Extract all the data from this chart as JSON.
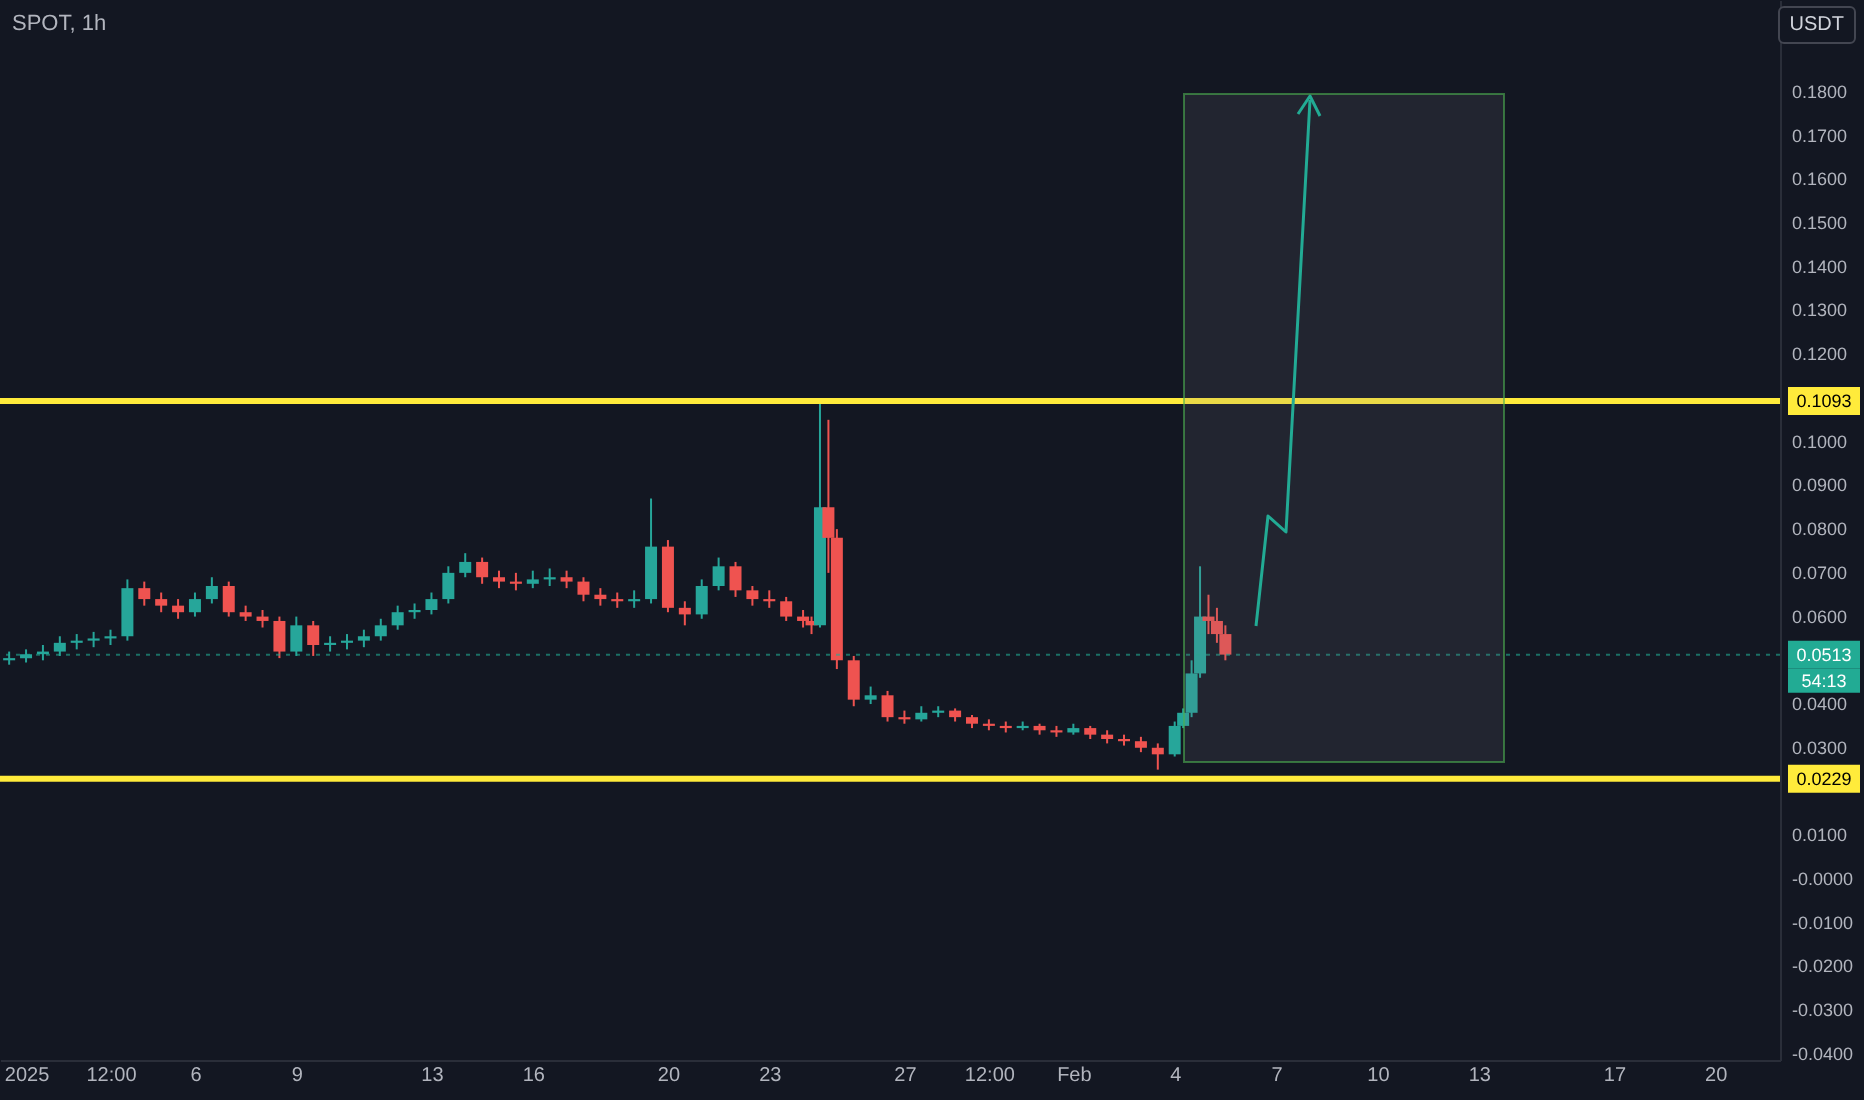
{
  "chart_data": {
    "type": "candlestick",
    "title": "SPOT, 1h",
    "ylabel": "USDT",
    "x": [
      "2024-12-31T12:00",
      "2025-01-01T00:00",
      "2025-01-01T12:00",
      "2025-01-02T00:00",
      "2025-01-02T12:00",
      "2025-01-03T00:00",
      "2025-01-03T12:00",
      "2025-01-04T00:00",
      "2025-01-04T12:00",
      "2025-01-05T00:00",
      "2025-01-05T12:00",
      "2025-01-06T00:00",
      "2025-01-06T12:00",
      "2025-01-07T00:00",
      "2025-01-07T12:00",
      "2025-01-08T00:00",
      "2025-01-08T12:00",
      "2025-01-09T00:00",
      "2025-01-09T12:00",
      "2025-01-10T00:00",
      "2025-01-10T12:00",
      "2025-01-11T00:00",
      "2025-01-11T12:00",
      "2025-01-12T00:00",
      "2025-01-12T12:00",
      "2025-01-13T00:00",
      "2025-01-13T12:00",
      "2025-01-14T00:00",
      "2025-01-14T12:00",
      "2025-01-15T00:00",
      "2025-01-15T12:00",
      "2025-01-16T00:00",
      "2025-01-16T12:00",
      "2025-01-17T00:00",
      "2025-01-17T12:00",
      "2025-01-18T00:00",
      "2025-01-18T12:00",
      "2025-01-19T00:00",
      "2025-01-19T12:00",
      "2025-01-20T00:00",
      "2025-01-20T12:00",
      "2025-01-21T00:00",
      "2025-01-21T12:00",
      "2025-01-22T00:00",
      "2025-01-22T12:00",
      "2025-01-23T00:00",
      "2025-01-23T12:00",
      "2025-01-24T00:00",
      "2025-01-24T06:00",
      "2025-01-24T12:00",
      "2025-01-24T18:00",
      "2025-01-25T00:00",
      "2025-01-25T12:00",
      "2025-01-26T00:00",
      "2025-01-26T12:00",
      "2025-01-27T00:00",
      "2025-01-27T12:00",
      "2025-01-28T00:00",
      "2025-01-28T12:00",
      "2025-01-29T00:00",
      "2025-01-29T12:00",
      "2025-01-30T00:00",
      "2025-01-30T12:00",
      "2025-01-31T00:00",
      "2025-01-31T12:00",
      "2025-02-01T00:00",
      "2025-02-01T12:00",
      "2025-02-02T00:00",
      "2025-02-02T12:00",
      "2025-02-03T00:00",
      "2025-02-03T12:00",
      "2025-02-04T00:00",
      "2025-02-04T06:00",
      "2025-02-04T12:00",
      "2025-02-04T18:00",
      "2025-02-05T00:00",
      "2025-02-05T06:00",
      "2025-02-05T12:00"
    ],
    "ohlc": [
      [
        0.05,
        0.052,
        0.049,
        0.0505
      ],
      [
        0.0505,
        0.0525,
        0.0495,
        0.0514
      ],
      [
        0.0514,
        0.0535,
        0.05,
        0.052
      ],
      [
        0.052,
        0.0555,
        0.051,
        0.054
      ],
      [
        0.054,
        0.056,
        0.0525,
        0.0545
      ],
      [
        0.0545,
        0.0565,
        0.053,
        0.055
      ],
      [
        0.055,
        0.057,
        0.0535,
        0.0555
      ],
      [
        0.0555,
        0.0685,
        0.0545,
        0.0665
      ],
      [
        0.0665,
        0.068,
        0.0625,
        0.064
      ],
      [
        0.064,
        0.0655,
        0.061,
        0.0625
      ],
      [
        0.0625,
        0.064,
        0.0595,
        0.061
      ],
      [
        0.061,
        0.0655,
        0.06,
        0.064
      ],
      [
        0.064,
        0.069,
        0.063,
        0.067
      ],
      [
        0.067,
        0.068,
        0.06,
        0.061
      ],
      [
        0.061,
        0.0625,
        0.059,
        0.06
      ],
      [
        0.06,
        0.0615,
        0.0575,
        0.059
      ],
      [
        0.059,
        0.06,
        0.0505,
        0.052
      ],
      [
        0.052,
        0.06,
        0.051,
        0.058
      ],
      [
        0.058,
        0.059,
        0.051,
        0.0535
      ],
      [
        0.0535,
        0.0555,
        0.052,
        0.054
      ],
      [
        0.054,
        0.056,
        0.0525,
        0.0545
      ],
      [
        0.0545,
        0.057,
        0.053,
        0.0555
      ],
      [
        0.0555,
        0.0595,
        0.0545,
        0.058
      ],
      [
        0.058,
        0.0625,
        0.057,
        0.061
      ],
      [
        0.061,
        0.063,
        0.0595,
        0.0615
      ],
      [
        0.0615,
        0.0655,
        0.0605,
        0.064
      ],
      [
        0.064,
        0.0715,
        0.063,
        0.07
      ],
      [
        0.07,
        0.0745,
        0.069,
        0.0725
      ],
      [
        0.0725,
        0.0735,
        0.0675,
        0.069
      ],
      [
        0.069,
        0.0705,
        0.0665,
        0.068
      ],
      [
        0.068,
        0.07,
        0.066,
        0.0675
      ],
      [
        0.0675,
        0.0705,
        0.0665,
        0.0685
      ],
      [
        0.0685,
        0.071,
        0.067,
        0.069
      ],
      [
        0.069,
        0.0705,
        0.0665,
        0.068
      ],
      [
        0.068,
        0.069,
        0.0635,
        0.065
      ],
      [
        0.065,
        0.0665,
        0.0625,
        0.064
      ],
      [
        0.064,
        0.0655,
        0.062,
        0.0635
      ],
      [
        0.0635,
        0.066,
        0.062,
        0.064
      ],
      [
        0.064,
        0.087,
        0.063,
        0.076
      ],
      [
        0.076,
        0.0775,
        0.061,
        0.062
      ],
      [
        0.062,
        0.0635,
        0.058,
        0.0605
      ],
      [
        0.0605,
        0.0685,
        0.0595,
        0.067
      ],
      [
        0.067,
        0.0735,
        0.066,
        0.0715
      ],
      [
        0.0715,
        0.0725,
        0.0645,
        0.066
      ],
      [
        0.066,
        0.067,
        0.0625,
        0.064
      ],
      [
        0.064,
        0.066,
        0.062,
        0.0635
      ],
      [
        0.0635,
        0.0645,
        0.059,
        0.06
      ],
      [
        0.06,
        0.0615,
        0.0575,
        0.059
      ],
      [
        0.059,
        0.06,
        0.056,
        0.058
      ],
      [
        0.058,
        0.109,
        0.0575,
        0.085
      ],
      [
        0.085,
        0.105,
        0.07,
        0.078
      ],
      [
        0.078,
        0.08,
        0.048,
        0.05
      ],
      [
        0.05,
        0.051,
        0.0395,
        0.041
      ],
      [
        0.041,
        0.044,
        0.04,
        0.042
      ],
      [
        0.042,
        0.043,
        0.036,
        0.037
      ],
      [
        0.037,
        0.0385,
        0.0355,
        0.0365
      ],
      [
        0.0365,
        0.0395,
        0.036,
        0.038
      ],
      [
        0.038,
        0.0395,
        0.037,
        0.0385
      ],
      [
        0.0385,
        0.039,
        0.036,
        0.037
      ],
      [
        0.037,
        0.0375,
        0.0345,
        0.0355
      ],
      [
        0.0355,
        0.0365,
        0.034,
        0.035
      ],
      [
        0.035,
        0.036,
        0.0335,
        0.0345
      ],
      [
        0.0345,
        0.036,
        0.034,
        0.035
      ],
      [
        0.035,
        0.0355,
        0.033,
        0.034
      ],
      [
        0.034,
        0.035,
        0.0325,
        0.0335
      ],
      [
        0.0335,
        0.0355,
        0.033,
        0.0345
      ],
      [
        0.0345,
        0.035,
        0.032,
        0.033
      ],
      [
        0.033,
        0.034,
        0.031,
        0.032
      ],
      [
        0.032,
        0.033,
        0.0305,
        0.0315
      ],
      [
        0.0315,
        0.0325,
        0.029,
        0.03
      ],
      [
        0.03,
        0.031,
        0.025,
        0.0285
      ],
      [
        0.0285,
        0.036,
        0.028,
        0.035
      ],
      [
        0.035,
        0.039,
        0.0345,
        0.038
      ],
      [
        0.038,
        0.05,
        0.037,
        0.047
      ],
      [
        0.047,
        0.0715,
        0.046,
        0.06
      ],
      [
        0.06,
        0.065,
        0.056,
        0.059
      ],
      [
        0.059,
        0.062,
        0.054,
        0.056
      ],
      [
        0.056,
        0.058,
        0.05,
        0.0513
      ]
    ],
    "colors": [
      "#26a69a",
      "#26a69a",
      "#26a69a",
      "#26a69a",
      "#26a69a",
      "#26a69a",
      "#26a69a",
      "#26a69a",
      "#ef5350",
      "#ef5350",
      "#ef5350",
      "#26a69a",
      "#26a69a",
      "#ef5350",
      "#ef5350",
      "#ef5350",
      "#ef5350",
      "#26a69a",
      "#ef5350",
      "#26a69a",
      "#26a69a",
      "#26a69a",
      "#26a69a",
      "#26a69a",
      "#26a69a",
      "#26a69a",
      "#26a69a",
      "#26a69a",
      "#ef5350",
      "#ef5350",
      "#ef5350",
      "#26a69a",
      "#26a69a",
      "#ef5350",
      "#ef5350",
      "#ef5350",
      "#ef5350",
      "#26a69a",
      "#26a69a",
      "#ef5350",
      "#ef5350",
      "#26a69a",
      "#26a69a",
      "#ef5350",
      "#ef5350",
      "#ef5350",
      "#ef5350",
      "#ef5350",
      "#ef5350",
      "#26a69a",
      "#ef5350",
      "#ef5350",
      "#ef5350",
      "#26a69a",
      "#ef5350",
      "#ef5350",
      "#26a69a",
      "#26a69a",
      "#ef5350",
      "#ef5350",
      "#ef5350",
      "#ef5350",
      "#26a69a",
      "#ef5350",
      "#ef5350",
      "#26a69a",
      "#ef5350",
      "#ef5350",
      "#ef5350",
      "#ef5350",
      "#ef5350",
      "#26a69a",
      "#26a69a",
      "#26a69a",
      "#26a69a",
      "#ef5350",
      "#ef5350",
      "#ef5350"
    ],
    "xlim": [
      "2024-12-31T05:30",
      "2025-02-21T22:00"
    ],
    "xticks": [
      {
        "value": "2025-01-01",
        "label": "2025"
      },
      {
        "value": "2025-01-03T12:00",
        "label": "12:00"
      },
      {
        "value": "2025-01-06",
        "label": "6"
      },
      {
        "value": "2025-01-09",
        "label": "9"
      },
      {
        "value": "2025-01-13",
        "label": "13"
      },
      {
        "value": "2025-01-16",
        "label": "16"
      },
      {
        "value": "2025-01-20",
        "label": "20"
      },
      {
        "value": "2025-01-23",
        "label": "23"
      },
      {
        "value": "2025-01-27",
        "label": "27"
      },
      {
        "value": "2025-01-29T12:00",
        "label": "12:00"
      },
      {
        "value": "2025-02-01",
        "label": "Feb"
      },
      {
        "value": "2025-02-04",
        "label": "4"
      },
      {
        "value": "2025-02-07",
        "label": "7"
      },
      {
        "value": "2025-02-10",
        "label": "10"
      },
      {
        "value": "2025-02-13",
        "label": "13"
      },
      {
        "value": "2025-02-17",
        "label": "17"
      },
      {
        "value": "2025-02-20",
        "label": "20"
      }
    ],
    "ylim": [
      -0.0414,
      0.201
    ],
    "yticks": [
      {
        "value": -0.04,
        "label": "-0.0400"
      },
      {
        "value": -0.03,
        "label": "-0.0300"
      },
      {
        "value": -0.02,
        "label": "-0.0200"
      },
      {
        "value": -0.01,
        "label": "-0.0100"
      },
      {
        "value": 0,
        "label": "-0.0000"
      },
      {
        "value": 0.01,
        "label": "0.0100"
      },
      {
        "value": 0.03,
        "label": "0.0300"
      },
      {
        "value": 0.04,
        "label": "0.0400"
      },
      {
        "value": 0.06,
        "label": "0.0600"
      },
      {
        "value": 0.07,
        "label": "0.0700"
      },
      {
        "value": 0.08,
        "label": "0.0800"
      },
      {
        "value": 0.09,
        "label": "0.0900"
      },
      {
        "value": 0.1,
        "label": "0.1000"
      },
      {
        "value": 0.12,
        "label": "0.1200"
      },
      {
        "value": 0.13,
        "label": "0.1300"
      },
      {
        "value": 0.14,
        "label": "0.1400"
      },
      {
        "value": 0.15,
        "label": "0.1500"
      },
      {
        "value": 0.16,
        "label": "0.1600"
      },
      {
        "value": 0.17,
        "label": "0.1700"
      },
      {
        "value": 0.18,
        "label": "0.1800"
      }
    ],
    "ref_lines": [
      {
        "axis": "y",
        "value": 0.1093,
        "label": "0.1093",
        "color": "#ffeb3b",
        "line_style": "solid"
      },
      {
        "axis": "y",
        "value": 0.0229,
        "label": "0.0229",
        "color": "#ffeb3b",
        "line_style": "solid"
      },
      {
        "axis": "y",
        "value": 0.0513,
        "label": "0.0513",
        "color": "#22ab94",
        "line_style": "dotted"
      }
    ],
    "annotations": [
      "54:13"
    ]
  }
}
